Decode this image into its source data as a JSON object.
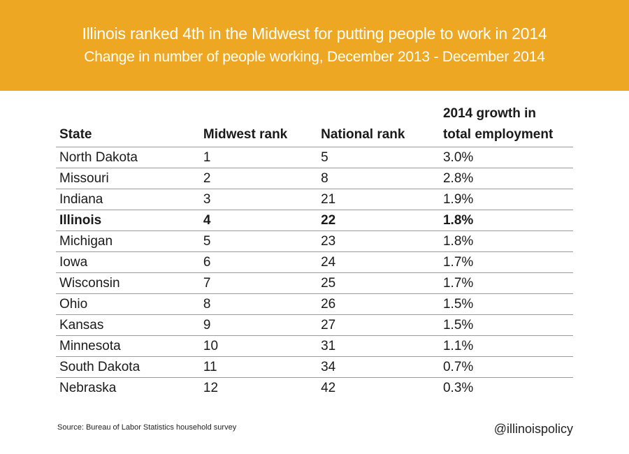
{
  "header": {
    "title": "Illinois ranked 4th in the Midwest for putting people to work in 2014",
    "subtitle": "Change in number of people working, December 2013 - December 2014",
    "color": "#eea722"
  },
  "chart_data": {
    "type": "table",
    "columns": [
      "State",
      "Midwest rank",
      "National rank",
      "2014 growth in total employment"
    ],
    "header_lines": {
      "col4_line1": "2014 growth in",
      "col4_line2": "total employment"
    },
    "highlighted_row": "Illinois",
    "rows": [
      {
        "state": "North Dakota",
        "midwest_rank": "1",
        "national_rank": "5",
        "growth": "3.0%"
      },
      {
        "state": "Missouri",
        "midwest_rank": "2",
        "national_rank": "8",
        "growth": "2.8%"
      },
      {
        "state": "Indiana",
        "midwest_rank": "3",
        "national_rank": "21",
        "growth": "1.9%"
      },
      {
        "state": "Illinois",
        "midwest_rank": "4",
        "national_rank": "22",
        "growth": "1.8%"
      },
      {
        "state": "Michigan",
        "midwest_rank": "5",
        "national_rank": "23",
        "growth": "1.8%"
      },
      {
        "state": "Iowa",
        "midwest_rank": "6",
        "national_rank": "24",
        "growth": "1.7%"
      },
      {
        "state": "Wisconsin",
        "midwest_rank": "7",
        "national_rank": "25",
        "growth": "1.7%"
      },
      {
        "state": "Ohio",
        "midwest_rank": "8",
        "national_rank": "26",
        "growth": "1.5%"
      },
      {
        "state": "Kansas",
        "midwest_rank": "9",
        "national_rank": "27",
        "growth": "1.5%"
      },
      {
        "state": "Minnesota",
        "midwest_rank": "10",
        "national_rank": "31",
        "growth": "1.1%"
      },
      {
        "state": "South Dakota",
        "midwest_rank": "11",
        "national_rank": "34",
        "growth": "0.7%"
      },
      {
        "state": "Nebraska",
        "midwest_rank": "12",
        "national_rank": "42",
        "growth": "0.3%"
      }
    ]
  },
  "footer": {
    "source": "Source: Bureau of Labor Statistics household survey",
    "handle": "@illinoispolicy"
  }
}
